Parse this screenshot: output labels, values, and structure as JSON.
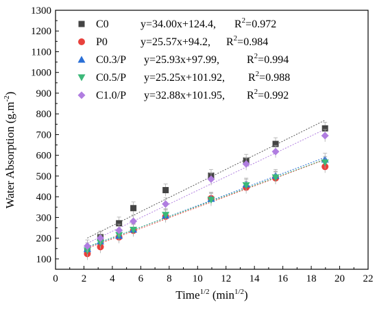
{
  "chart_data": {
    "type": "scatter",
    "xlabel_main": "Time",
    "xlabel_sup1": "1/2",
    "xlabel_unit": " (min",
    "xlabel_sup2": "1/2",
    "xlabel_close": ")",
    "ylabel_main": "Water Absorption (g.m",
    "ylabel_sup": "-2",
    "ylabel_close": ")",
    "xlim": [
      0,
      22
    ],
    "ylim": [
      50,
      1300
    ],
    "x_ticks": [
      0,
      2,
      4,
      6,
      8,
      10,
      12,
      14,
      16,
      18,
      20,
      22
    ],
    "y_ticks": [
      100,
      200,
      300,
      400,
      500,
      600,
      700,
      800,
      900,
      1000,
      1100,
      1200,
      1300
    ],
    "grid": false,
    "legend_position": "top-left",
    "series": [
      {
        "name": "C0",
        "marker": "square",
        "color": "#444444",
        "fit_color": "#555555",
        "slope": 34.0,
        "intercept": 124.4,
        "equation": "y=34.00x+124.4,",
        "r2_label": "R",
        "r2_value": "=0.972",
        "x": [
          2.24,
          3.16,
          4.47,
          5.48,
          7.75,
          10.95,
          13.42,
          15.49,
          18.97
        ],
        "y": [
          135,
          205,
          272,
          345,
          432,
          502,
          575,
          655,
          730
        ]
      },
      {
        "name": "P0",
        "marker": "circle",
        "color": "#e8413c",
        "fit_color": "#e8413c",
        "slope": 25.57,
        "intercept": 94.2,
        "equation": "y=25.57x+94.2,",
        "r2_label": "R",
        "r2_value": "=0.984",
        "x": [
          2.24,
          3.16,
          4.47,
          5.48,
          7.75,
          10.95,
          13.42,
          15.49,
          18.97
        ],
        "y": [
          125,
          158,
          205,
          237,
          305,
          392,
          445,
          490,
          545
        ]
      },
      {
        "name": "C0.3/P",
        "marker": "triangle-up",
        "color": "#2a6fd6",
        "fit_color": "#2a6fd6",
        "slope": 25.93,
        "intercept": 97.99,
        "equation": "y=25.93x+97.99,",
        "r2_label": "R",
        "r2_value": "=0.994",
        "x": [
          2.24,
          3.16,
          4.47,
          5.48,
          7.75,
          10.95,
          13.42,
          15.49,
          18.97
        ],
        "y": [
          148,
          185,
          212,
          242,
          310,
          390,
          460,
          502,
          580
        ]
      },
      {
        "name": "C0.5/P",
        "marker": "triangle-down",
        "color": "#3cb879",
        "fit_color": "#3cb879",
        "slope": 25.25,
        "intercept": 101.92,
        "equation": "y=25.25x+101.92,",
        "r2_label": "R",
        "r2_value": "=0.988",
        "x": [
          2.24,
          3.16,
          4.47,
          5.48,
          7.75,
          10.95,
          13.42,
          15.49,
          18.97
        ],
        "y": [
          140,
          178,
          215,
          240,
          312,
          385,
          455,
          493,
          565
        ]
      },
      {
        "name": "C1.0/P",
        "marker": "diamond",
        "color": "#b07de0",
        "fit_color": "#b07de0",
        "slope": 32.88,
        "intercept": 101.95,
        "equation": "y=32.88x+101.95,",
        "r2_label": "R",
        "r2_value": "=0.992",
        "x": [
          2.24,
          3.16,
          4.47,
          5.48,
          7.75,
          10.95,
          13.42,
          15.49,
          18.97
        ],
        "y": [
          162,
          200,
          238,
          282,
          365,
          485,
          558,
          618,
          695
        ]
      }
    ]
  }
}
